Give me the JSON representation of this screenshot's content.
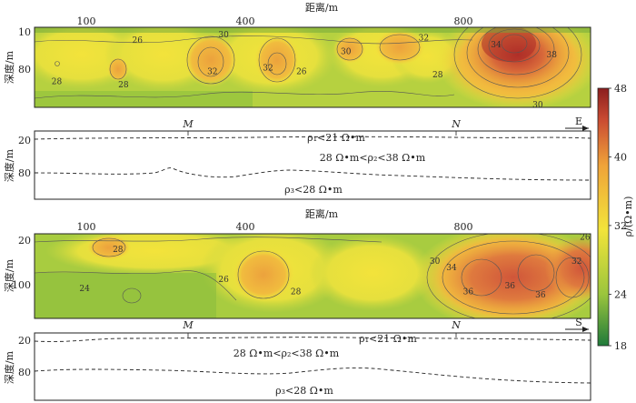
{
  "chart_data": [
    {
      "type": "heatmap",
      "panel": "upper-resistivity-section",
      "xlabel": "距离/m",
      "ylabel": "深度/m",
      "x_ticks": [
        100,
        400,
        800
      ],
      "y_ticks": [
        10,
        80
      ],
      "xlim": [
        0,
        1000
      ],
      "ylim": [
        10,
        130
      ],
      "contour_labels": [
        {
          "value": "26",
          "x": 185,
          "y": 33
        },
        {
          "value": "28",
          "x": 40,
          "y": 95
        },
        {
          "value": "28",
          "x": 160,
          "y": 100
        },
        {
          "value": "30",
          "x": 340,
          "y": 25
        },
        {
          "value": "32",
          "x": 320,
          "y": 80
        },
        {
          "value": "32",
          "x": 420,
          "y": 75
        },
        {
          "value": "26",
          "x": 480,
          "y": 80
        },
        {
          "value": "30",
          "x": 560,
          "y": 50
        },
        {
          "value": "32",
          "x": 700,
          "y": 30
        },
        {
          "value": "28",
          "x": 725,
          "y": 85
        },
        {
          "value": "34",
          "x": 830,
          "y": 40
        },
        {
          "value": "38",
          "x": 930,
          "y": 55
        },
        {
          "value": "30",
          "x": 905,
          "y": 130
        }
      ]
    },
    {
      "type": "heatmap",
      "panel": "lower-resistivity-section",
      "xlabel": "距离/m",
      "ylabel": "深度/m",
      "x_ticks": [
        100,
        400,
        800
      ],
      "y_ticks": [
        20,
        100
      ],
      "xlim": [
        0,
        1000
      ],
      "ylim": [
        10,
        150
      ],
      "contour_labels": [
        {
          "value": "28",
          "x": 150,
          "y": 40
        },
        {
          "value": "24",
          "x": 90,
          "y": 105
        },
        {
          "value": "26",
          "x": 340,
          "y": 90
        },
        {
          "value": "28",
          "x": 470,
          "y": 110
        },
        {
          "value": "30",
          "x": 720,
          "y": 60
        },
        {
          "value": "34",
          "x": 750,
          "y": 70
        },
        {
          "value": "36",
          "x": 780,
          "y": 110
        },
        {
          "value": "36",
          "x": 855,
          "y": 100
        },
        {
          "value": "36",
          "x": 910,
          "y": 115
        },
        {
          "value": "32",
          "x": 975,
          "y": 60
        },
        {
          "value": "26",
          "x": 990,
          "y": 20
        }
      ]
    }
  ],
  "colorbar": {
    "label": "ρ/(Ω•m)",
    "ticks": [
      18,
      24,
      32,
      40,
      48
    ],
    "range": [
      18,
      48
    ],
    "colors": [
      "#1f7a3a",
      "#9bc53d",
      "#f2e43a",
      "#f0a339",
      "#c94a32",
      "#8b1e1e"
    ]
  },
  "upper_section": {
    "xlabel": "距离/m",
    "ylabel": "深度/m",
    "x_ticks": [
      "100",
      "400",
      "800"
    ],
    "y_ticks": [
      "10",
      "80"
    ]
  },
  "lower_section": {
    "xlabel": "距离/m",
    "ylabel": "深度/m",
    "x_ticks": [
      "100",
      "400",
      "800"
    ],
    "y_ticks": [
      "20",
      "100"
    ]
  },
  "upper_model": {
    "ylabel": "深度/m",
    "y_ticks": [
      "20",
      "80"
    ],
    "marker_m": "M",
    "marker_n": "N",
    "direction": "E",
    "layer1": "ρ₁<21 Ω•m",
    "layer2": "28 Ω•m<ρ₂<38 Ω•m",
    "layer3": "ρ₃<28 Ω•m"
  },
  "lower_model": {
    "ylabel": "深度/m",
    "y_ticks": [
      "20",
      "80"
    ],
    "marker_m": "M",
    "marker_n": "N",
    "direction": "S",
    "layer1": "ρ₁<21 Ω•m",
    "layer2": "28 Ω•m<ρ₂<38 Ω•m",
    "layer3": "ρ₃<28 Ω•m"
  }
}
